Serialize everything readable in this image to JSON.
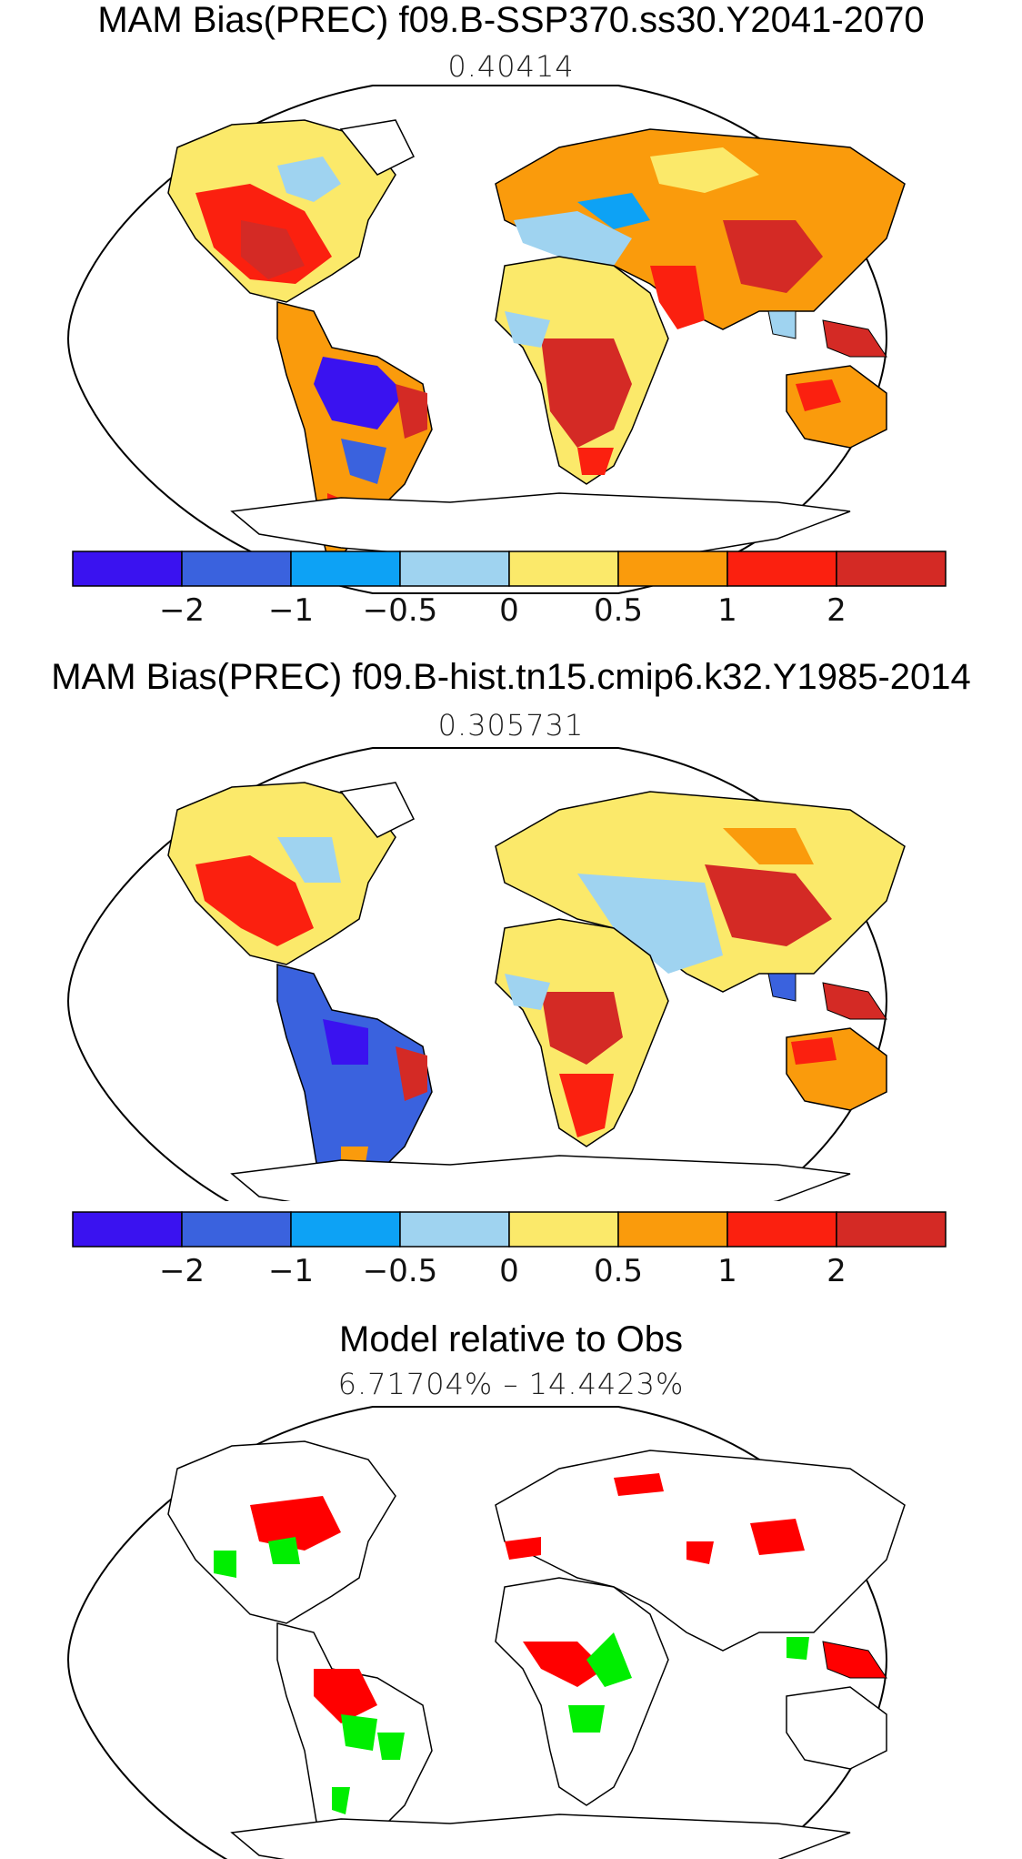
{
  "panels": [
    {
      "title": "MAM Bias(PREC) f09.B-SSP370.ss30.Y2041-2070",
      "subtitle": "0.40414",
      "colorbar": {
        "colors": [
          "#3a12f0",
          "#3a62de",
          "#0da2f5",
          "#9fd3f0",
          "#fbe96a",
          "#fa9b0c",
          "#fb200f",
          "#d42a25"
        ],
        "labels": [
          "−2",
          "−1",
          "−0.5",
          "0",
          "0.5",
          "1",
          "2"
        ]
      }
    },
    {
      "title": "MAM Bias(PREC) f09.B-hist.tn15.cmip6.k32.Y1985-2014",
      "subtitle": "0.305731",
      "colorbar": {
        "colors": [
          "#3a12f0",
          "#3a62de",
          "#0da2f5",
          "#9fd3f0",
          "#fbe96a",
          "#fa9b0c",
          "#fb200f",
          "#d42a25"
        ],
        "labels": [
          "−2",
          "−1",
          "−0.5",
          "0",
          "0.5",
          "1",
          "2"
        ]
      }
    },
    {
      "title": "Model relative to Obs",
      "subtitle": "6.71704% – 14.4423%",
      "colors": {
        "worse": "#ff0000",
        "better": "#00ee00"
      }
    }
  ]
}
